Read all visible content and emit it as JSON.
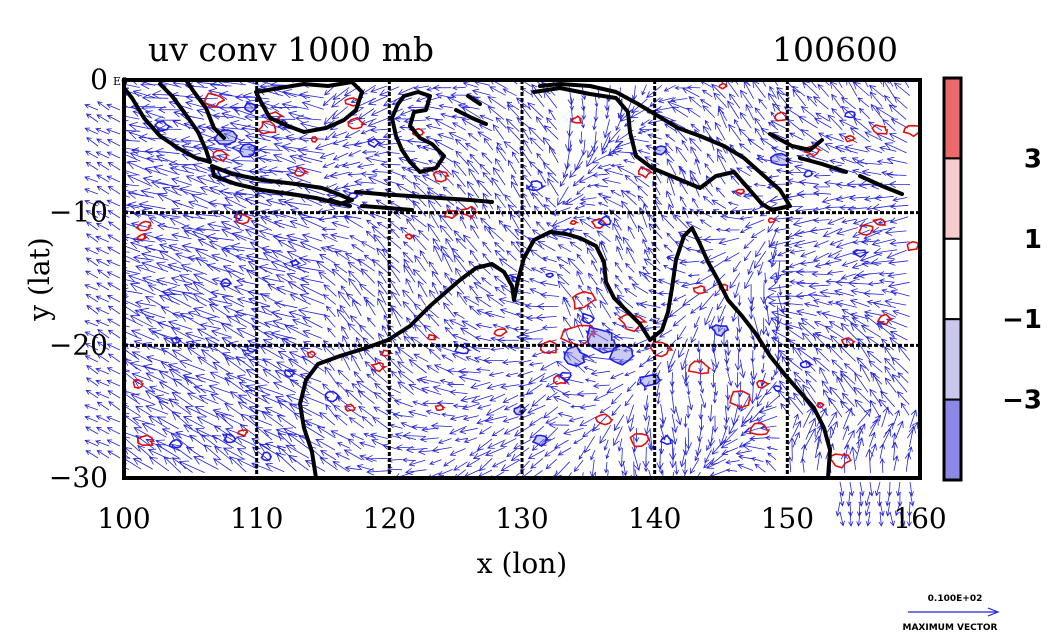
{
  "header": {
    "title": "uv conv 1000 mb",
    "run_id": "100600"
  },
  "axes": {
    "xlabel": "x (lon)",
    "ylabel": "y (lat)",
    "xlim": [
      100,
      160
    ],
    "ylim": [
      -30,
      0
    ],
    "x_ticks": [
      "100",
      "110",
      "120",
      "130",
      "140",
      "150",
      "160"
    ],
    "y_ticks": [
      "0",
      "−10",
      "−20",
      "−30"
    ],
    "origin_tag": "E0",
    "grid": true
  },
  "colorbar": {
    "labels": [
      "3",
      "1",
      "−1",
      "−3"
    ],
    "colors": [
      "#e86a6a",
      "#f7cccc",
      "#ffffff",
      "#c8c8ef",
      "#8a8ae6"
    ]
  },
  "reference_vector": {
    "value": "0.100E+02",
    "label": "MAXIMUM VECTOR"
  },
  "colors": {
    "vectors": "#2323d8",
    "positive_contour": "#e01010",
    "negative_contour": "#2020e0",
    "coast": "#000000"
  }
}
